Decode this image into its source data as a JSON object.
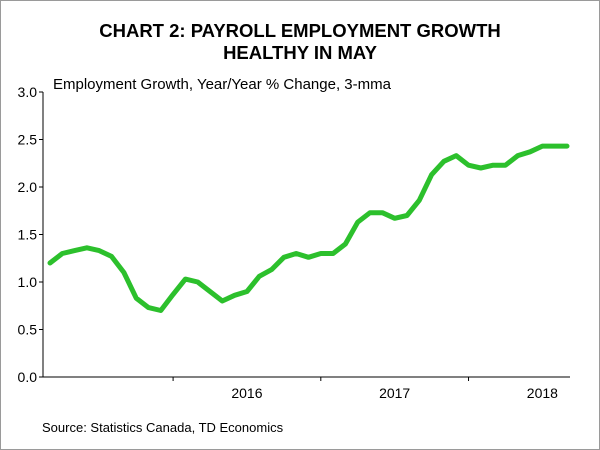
{
  "chart_data": {
    "type": "line",
    "title_line1": "CHART 2: PAYROLL EMPLOYMENT GROWTH",
    "title_line2": "HEALTHY IN MAY",
    "ylabel": "Employment Growth, Year/Year % Change, 3-mma",
    "source": "Source: Statistics Canada, TD Economics",
    "ylim": [
      0,
      3
    ],
    "y_ticks": [
      "0.0",
      "0.5",
      "1.0",
      "1.5",
      "2.0",
      "2.5",
      "3.0"
    ],
    "y_tick_values": [
      0,
      0.5,
      1.0,
      1.5,
      2.0,
      2.5,
      3.0
    ],
    "x_tick_labels": [
      "2016",
      "2017",
      "2018"
    ],
    "x_tick_dates": [
      "2016-01",
      "2017-01",
      "2018-01"
    ],
    "grid": false,
    "line_color": "#2cc02c",
    "series": [
      {
        "x": [
          "2015-03",
          "2015-04",
          "2015-05",
          "2015-06",
          "2015-07",
          "2015-08",
          "2015-09",
          "2015-10",
          "2015-11",
          "2015-12",
          "2016-01",
          "2016-02",
          "2016-03",
          "2016-04",
          "2016-05",
          "2016-06",
          "2016-07",
          "2016-08",
          "2016-09",
          "2016-10",
          "2016-11",
          "2016-12",
          "2017-01",
          "2017-02",
          "2017-03",
          "2017-04",
          "2017-05",
          "2017-06",
          "2017-07",
          "2017-08",
          "2017-09",
          "2017-10",
          "2017-11",
          "2017-12",
          "2018-01",
          "2018-02",
          "2018-03",
          "2018-04",
          "2018-05",
          "2018-06",
          "2018-07",
          "2018-08",
          "2018-09"
        ],
        "values": [
          1.2,
          1.3,
          1.33,
          1.36,
          1.33,
          1.27,
          1.1,
          0.83,
          0.73,
          0.7,
          0.87,
          1.03,
          1.0,
          0.9,
          0.8,
          0.86,
          0.9,
          1.06,
          1.13,
          1.26,
          1.3,
          1.26,
          1.3,
          1.3,
          1.4,
          1.63,
          1.73,
          1.73,
          1.67,
          1.7,
          1.86,
          2.13,
          2.27,
          2.33,
          2.23,
          2.2,
          2.23,
          2.23,
          2.33,
          2.37,
          2.43,
          2.43,
          2.43
        ]
      }
    ]
  }
}
